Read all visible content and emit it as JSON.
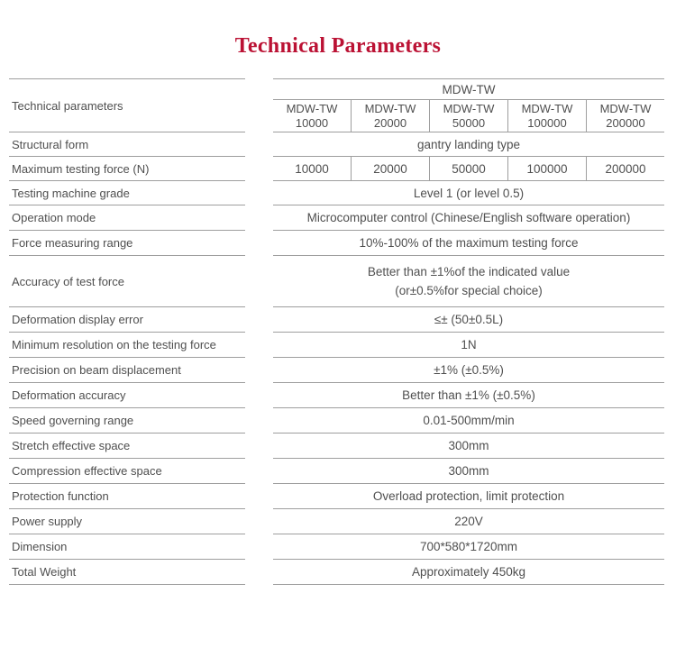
{
  "page": {
    "title": "Technical Parameters"
  },
  "colors": {
    "accent_red": "#bb1234",
    "line_gray": "#9e9e9e",
    "text_gray": "#4f4f4f"
  },
  "table": {
    "header": {
      "label": "Technical parameters",
      "group_label": "MDW-TW",
      "models": [
        {
          "name": "MDW-TW",
          "code": "10000"
        },
        {
          "name": "MDW-TW",
          "code": "20000"
        },
        {
          "name": "MDW-TW",
          "code": "50000"
        },
        {
          "name": "MDW-TW",
          "code": "100000"
        },
        {
          "name": "MDW-TW",
          "code": "200000"
        }
      ]
    },
    "rows": [
      {
        "label": "Structural form",
        "value": "gantry landing type"
      },
      {
        "label": "Maximum testing force (N)",
        "values": [
          "10000",
          "20000",
          "50000",
          "100000",
          "200000"
        ]
      },
      {
        "label": "Testing machine grade",
        "value": "Level 1  (or level 0.5)"
      },
      {
        "label": "Operation mode",
        "value": "Microcomputer control (Chinese/English software operation)"
      },
      {
        "label": "Force measuring range",
        "value": "10%-100% of the maximum testing force"
      },
      {
        "label": "Accuracy of test force",
        "lines": [
          "Better than ±1%of the indicated value",
          "(or±0.5%for special choice)"
        ]
      },
      {
        "label": "Deformation display error",
        "value": "≤±  (50±0.5L)"
      },
      {
        "label": "Minimum resolution on the testing force",
        "value": "1N"
      },
      {
        "label": "Precision on beam displacement",
        "value": "±1%  (±0.5%)"
      },
      {
        "label": "Deformation accuracy",
        "value": "Better than ±1%  (±0.5%)"
      },
      {
        "label": "Speed governing range",
        "value": "0.01-500mm/min"
      },
      {
        "label": "Stretch effective space",
        "value": "300mm"
      },
      {
        "label": "Compression effective space",
        "value": "300mm"
      },
      {
        "label": "Protection function",
        "value": "Overload protection, limit protection"
      },
      {
        "label": "Power supply",
        "value": "220V"
      },
      {
        "label": "Dimension",
        "value": "700*580*1720mm"
      },
      {
        "label": "Total Weight",
        "value": "Approximately 450kg"
      }
    ]
  }
}
